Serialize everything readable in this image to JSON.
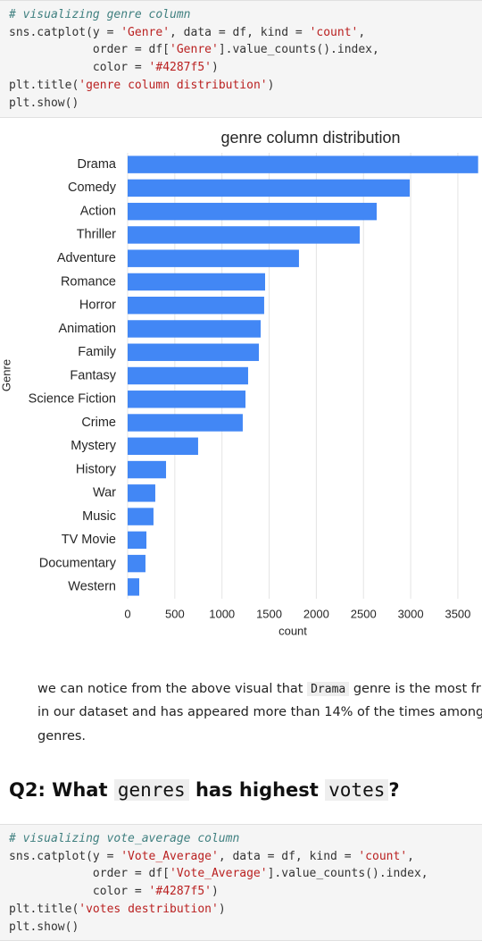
{
  "code_cells": [
    {
      "lines": [
        "# visualizing genre column",
        "sns.catplot(y = 'Genre', data = df, kind = 'count',",
        "            order = df['Genre'].value_counts().index,",
        "            color = '#4287f5')",
        "plt.title('genre column distribution')",
        "plt.show()"
      ]
    },
    {
      "lines": [
        "# visualizing vote_average column",
        "sns.catplot(y = 'Vote_Average', data = df, kind = 'count',",
        "            order = df['Vote_Average'].value_counts().index,",
        "            color = '#4287f5')",
        "plt.title('votes destribution')",
        "plt.show()"
      ]
    }
  ],
  "chart_data": {
    "type": "barh",
    "title": "genre column distribution",
    "xlabel": "count",
    "ylabel": "Genre",
    "categories": [
      "Drama",
      "Comedy",
      "Action",
      "Thriller",
      "Adventure",
      "Romance",
      "Horror",
      "Animation",
      "Family",
      "Fantasy",
      "Science Fiction",
      "Crime",
      "Mystery",
      "History",
      "War",
      "Music",
      "TV Movie",
      "Documentary",
      "Western"
    ],
    "values": [
      3715,
      2990,
      2640,
      2460,
      1816,
      1457,
      1447,
      1410,
      1391,
      1277,
      1249,
      1220,
      747,
      407,
      293,
      274,
      199,
      189,
      123
    ],
    "color": "#4287f5",
    "xlim": [
      0,
      3756
    ],
    "xticks": [
      0,
      500,
      1000,
      1500,
      2000,
      2500,
      3000,
      3500
    ],
    "grid": true
  },
  "markdown": {
    "bullet": [
      "we can notice from the above visual that",
      "Drama",
      "genre is the most fr",
      "in our dataset and has appeared more than 14% of the times among",
      "genres."
    ]
  },
  "heading": [
    "Q2: What",
    "genres",
    "has highest",
    "votes",
    "?"
  ]
}
